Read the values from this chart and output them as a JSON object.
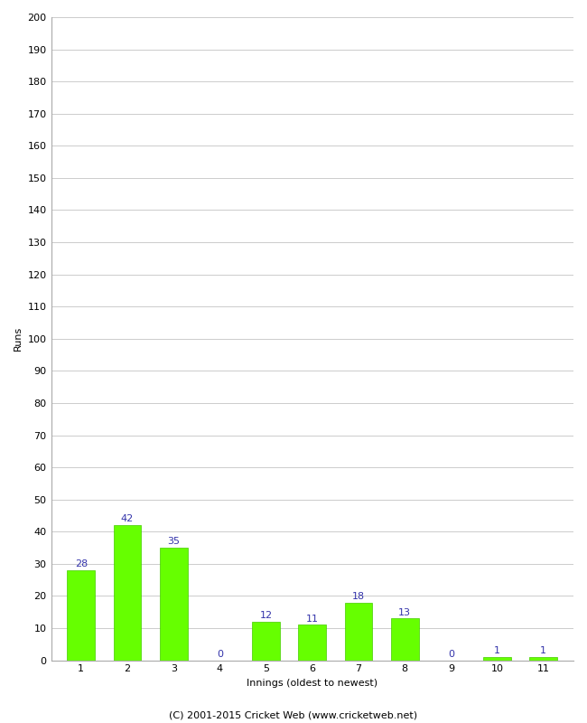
{
  "categories": [
    "1",
    "2",
    "3",
    "4",
    "5",
    "6",
    "7",
    "8",
    "9",
    "10",
    "11"
  ],
  "values": [
    28,
    42,
    35,
    0,
    12,
    11,
    18,
    13,
    0,
    1,
    1
  ],
  "bar_color": "#66ff00",
  "bar_edge_color": "#44cc00",
  "label_color": "#3333aa",
  "xlabel": "Innings (oldest to newest)",
  "ylabel": "Runs",
  "footer": "(C) 2001-2015 Cricket Web (www.cricketweb.net)",
  "ylim": [
    0,
    200
  ],
  "yticks": [
    0,
    10,
    20,
    30,
    40,
    50,
    60,
    70,
    80,
    90,
    100,
    110,
    120,
    130,
    140,
    150,
    160,
    170,
    180,
    190,
    200
  ],
  "bg_color": "#ffffff",
  "grid_color": "#cccccc",
  "label_fontsize": 8,
  "axis_label_fontsize": 8,
  "tick_fontsize": 8,
  "footer_fontsize": 8
}
